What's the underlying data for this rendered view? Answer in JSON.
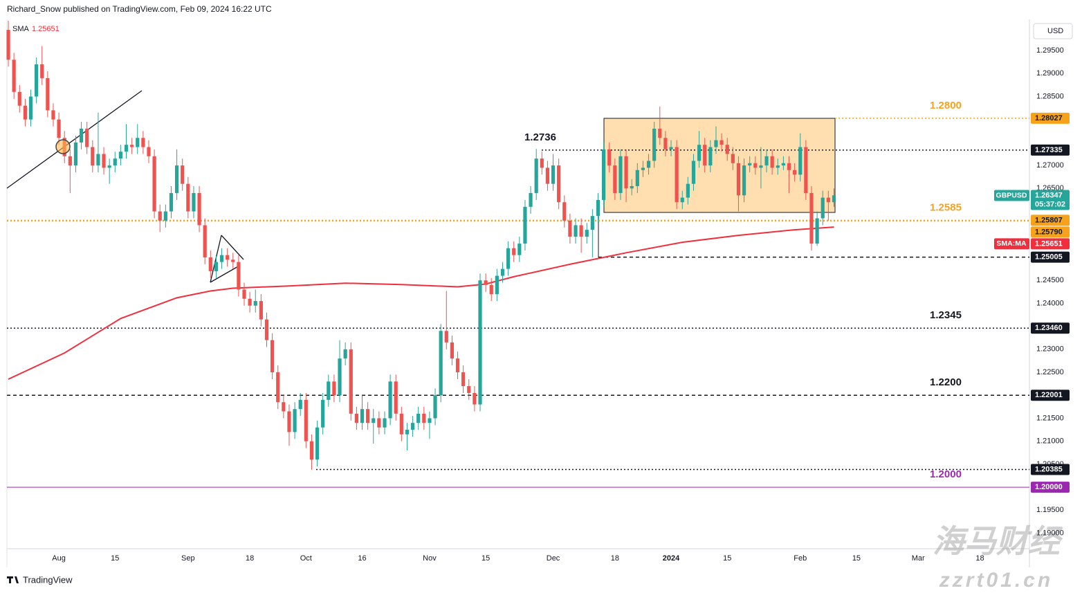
{
  "header": {
    "publisher": "Richard_Snow published on TradingView.com, Feb 09, 2024 16:22 UTC"
  },
  "footer": {
    "brand": "TradingView"
  },
  "watermark": {
    "name": "海马财经",
    "site": "zzrt01.cn"
  },
  "chart_data": {
    "type": "candlestick",
    "currency": "USD",
    "up_color": "#26a69a",
    "down_color": "#ef5350",
    "open": [
      1.2995,
      1.293,
      1.286,
      1.283,
      1.28,
      1.285,
      1.292,
      1.289,
      1.282,
      1.28,
      1.276,
      1.272,
      1.27,
      1.275,
      1.278,
      1.274,
      1.27,
      1.2725,
      1.2695,
      1.27,
      1.2715,
      1.273,
      1.2745,
      1.274,
      1.276,
      1.274,
      1.272,
      1.26,
      1.258,
      1.26,
      1.264,
      1.27,
      1.266,
      1.26,
      1.264,
      1.257,
      1.25,
      1.247,
      1.249,
      1.2505,
      1.2495,
      1.249,
      1.243,
      1.241,
      1.2395,
      1.2405,
      1.2365,
      1.232,
      1.225,
      1.2185,
      1.2165,
      1.212,
      1.217,
      1.219,
      1.21,
      1.206,
      1.213,
      1.219,
      1.223,
      1.22,
      1.228,
      1.23,
      1.216,
      1.214,
      1.217,
      1.214,
      1.215,
      1.213,
      1.215,
      1.223,
      1.216,
      1.2115,
      1.2125,
      1.214,
      1.216,
      1.214,
      1.215,
      1.22,
      1.234,
      1.2315,
      1.228,
      1.225,
      1.222,
      1.2205,
      1.218,
      1.245,
      1.244,
      1.242,
      1.246,
      1.2475,
      1.252,
      1.2505,
      1.253,
      1.261,
      1.264,
      1.2715,
      1.2695,
      1.266,
      1.27,
      1.262,
      1.258,
      1.2545,
      1.257,
      1.2545,
      1.256,
      1.259,
      1.2625,
      1.2735,
      1.27,
      1.264,
      1.272,
      1.265,
      1.2655,
      1.269,
      1.2695,
      1.271,
      1.278,
      1.276,
      1.2735,
      1.274,
      1.262,
      1.263,
      1.266,
      1.271,
      1.2745,
      1.27,
      1.274,
      1.2755,
      1.2745,
      1.2725,
      1.2705,
      1.2635,
      1.27,
      1.2705,
      1.2695,
      1.27,
      1.272,
      1.2695,
      1.27,
      1.2705,
      1.269,
      1.268,
      1.274,
      1.264,
      1.253,
      1.2585,
      1.263,
      1.262
    ],
    "high": [
      1.3015,
      1.2945,
      1.2875,
      1.2845,
      1.2865,
      1.2935,
      1.296,
      1.2905,
      1.2835,
      1.2815,
      1.2775,
      1.2735,
      1.2765,
      1.2795,
      1.2795,
      1.2755,
      1.2815,
      1.274,
      1.2715,
      1.273,
      1.2745,
      1.279,
      1.276,
      1.279,
      1.2775,
      1.2755,
      1.2735,
      1.2615,
      1.2615,
      1.2655,
      1.2735,
      1.2715,
      1.2675,
      1.2655,
      1.2655,
      1.2585,
      1.2515,
      1.2505,
      1.252,
      1.252,
      1.251,
      1.2505,
      1.2445,
      1.2425,
      1.243,
      1.242,
      1.238,
      1.2335,
      1.2265,
      1.22,
      1.218,
      1.2185,
      1.2205,
      1.2205,
      1.2115,
      1.2145,
      1.2205,
      1.2245,
      1.2245,
      1.232,
      1.2315,
      1.2315,
      1.2175,
      1.22,
      1.2185,
      1.217,
      1.2165,
      1.2165,
      1.2245,
      1.2245,
      1.2175,
      1.214,
      1.2155,
      1.2175,
      1.2175,
      1.2165,
      1.2215,
      1.2355,
      1.2427,
      1.233,
      1.2295,
      1.2265,
      1.2235,
      1.222,
      1.2465,
      1.2465,
      1.2455,
      1.2475,
      1.249,
      1.2535,
      1.2535,
      1.2545,
      1.2625,
      1.2655,
      1.2736,
      1.273,
      1.271,
      1.2725,
      1.2715,
      1.2635,
      1.2595,
      1.2585,
      1.2585,
      1.2575,
      1.2605,
      1.264,
      1.275,
      1.275,
      1.2715,
      1.2735,
      1.2735,
      1.267,
      1.2705,
      1.271,
      1.2725,
      1.2795,
      1.2828,
      1.2775,
      1.2755,
      1.2755,
      1.2645,
      1.2675,
      1.2725,
      1.2775,
      1.276,
      1.2755,
      1.2785,
      1.277,
      1.276,
      1.274,
      1.272,
      1.2715,
      1.272,
      1.272,
      1.274,
      1.2735,
      1.2735,
      1.2715,
      1.272,
      1.272,
      1.2705,
      1.277,
      1.2755,
      1.2655,
      1.26,
      1.2645,
      1.2645,
      1.265
    ],
    "low": [
      1.2915,
      1.2845,
      1.2815,
      1.2785,
      1.2785,
      1.2835,
      1.2875,
      1.2805,
      1.2785,
      1.2745,
      1.2705,
      1.264,
      1.2685,
      1.2735,
      1.2725,
      1.2685,
      1.2685,
      1.268,
      1.266,
      1.2685,
      1.27,
      1.2715,
      1.2725,
      1.2725,
      1.2725,
      1.2705,
      1.2585,
      1.2555,
      1.2565,
      1.2585,
      1.2625,
      1.2645,
      1.2585,
      1.2585,
      1.2555,
      1.2485,
      1.2455,
      1.2455,
      1.2475,
      1.248,
      1.2475,
      1.2415,
      1.2395,
      1.238,
      1.238,
      1.235,
      1.2305,
      1.2235,
      1.217,
      1.215,
      1.209,
      1.2105,
      1.2155,
      1.2085,
      1.2038,
      1.2045,
      1.2115,
      1.2175,
      1.2185,
      1.2185,
      1.2265,
      1.2145,
      1.2125,
      1.2125,
      1.2125,
      1.2095,
      1.2115,
      1.2115,
      1.2135,
      1.2145,
      1.21,
      1.208,
      1.211,
      1.2125,
      1.2125,
      1.2105,
      1.2135,
      1.2185,
      1.23,
      1.2265,
      1.2235,
      1.2205,
      1.219,
      1.2165,
      1.2165,
      1.2425,
      1.2405,
      1.2405,
      1.2445,
      1.246,
      1.249,
      1.249,
      1.2515,
      1.2595,
      1.2625,
      1.268,
      1.2645,
      1.2645,
      1.2605,
      1.2565,
      1.253,
      1.253,
      1.251,
      1.253,
      1.25,
      1.2575,
      1.261,
      1.2685,
      1.2625,
      1.2625,
      1.262,
      1.2635,
      1.264,
      1.2675,
      1.268,
      1.2695,
      1.2745,
      1.272,
      1.272,
      1.2605,
      1.2605,
      1.2615,
      1.2645,
      1.2695,
      1.2685,
      1.2685,
      1.2725,
      1.273,
      1.271,
      1.269,
      1.26,
      1.262,
      1.2685,
      1.268,
      1.265,
      1.2685,
      1.268,
      1.268,
      1.269,
      1.264,
      1.2665,
      1.2665,
      1.2625,
      1.2515,
      1.2525,
      1.257,
      1.258,
      1.261
    ],
    "close": [
      1.293,
      1.286,
      1.283,
      1.28,
      1.285,
      1.292,
      1.289,
      1.282,
      1.28,
      1.276,
      1.272,
      1.27,
      1.275,
      1.278,
      1.274,
      1.27,
      1.2725,
      1.2695,
      1.27,
      1.2715,
      1.273,
      1.2745,
      1.274,
      1.276,
      1.274,
      1.272,
      1.26,
      1.258,
      1.26,
      1.264,
      1.27,
      1.266,
      1.26,
      1.264,
      1.257,
      1.25,
      1.247,
      1.249,
      1.2505,
      1.2495,
      1.249,
      1.243,
      1.241,
      1.2395,
      1.2405,
      1.2365,
      1.232,
      1.225,
      1.2185,
      1.2165,
      1.212,
      1.217,
      1.219,
      1.21,
      1.206,
      1.213,
      1.219,
      1.223,
      1.22,
      1.228,
      1.23,
      1.216,
      1.214,
      1.217,
      1.214,
      1.215,
      1.213,
      1.215,
      1.223,
      1.216,
      1.2115,
      1.2125,
      1.214,
      1.216,
      1.214,
      1.215,
      1.22,
      1.234,
      1.2315,
      1.228,
      1.225,
      1.222,
      1.2205,
      1.218,
      1.245,
      1.244,
      1.242,
      1.246,
      1.2475,
      1.252,
      1.2505,
      1.253,
      1.261,
      1.264,
      1.2715,
      1.2695,
      1.266,
      1.27,
      1.262,
      1.258,
      1.2545,
      1.257,
      1.2545,
      1.256,
      1.259,
      1.2625,
      1.2735,
      1.27,
      1.264,
      1.272,
      1.265,
      1.2655,
      1.269,
      1.2695,
      1.271,
      1.278,
      1.276,
      1.2735,
      1.274,
      1.262,
      1.263,
      1.266,
      1.271,
      1.2745,
      1.27,
      1.274,
      1.2755,
      1.2745,
      1.2725,
      1.2705,
      1.2635,
      1.27,
      1.2705,
      1.2695,
      1.27,
      1.272,
      1.2695,
      1.27,
      1.2705,
      1.269,
      1.268,
      1.274,
      1.264,
      1.253,
      1.2585,
      1.263,
      1.262,
      1.2635
    ],
    "sma": {
      "legend_name": "SMA",
      "tag_name": "SMA:MA",
      "last": 1.25651,
      "color": "#ef2f3c",
      "x": [
        0,
        10,
        20,
        30,
        36,
        40,
        50,
        60,
        70,
        80,
        85,
        90,
        100,
        110,
        120,
        130,
        140,
        147
      ],
      "values": [
        1.2235,
        1.2292,
        1.2367,
        1.2412,
        1.2427,
        1.2433,
        1.2438,
        1.2444,
        1.2441,
        1.2436,
        1.2442,
        1.2458,
        1.2485,
        1.251,
        1.2533,
        1.2548,
        1.256,
        1.2566
      ]
    },
    "last_price": {
      "symbol": "GBPUSD",
      "value": 1.26347,
      "countdown": "05:37:02",
      "color": "#26a69a"
    },
    "levels": [
      {
        "price": 1.28027,
        "tag": "1.28027",
        "label": "1.2800",
        "color": "#f7a21b",
        "style": "dotted"
      },
      {
        "price": 1.27335,
        "tag": "1.27335",
        "label": "1.2736",
        "color": "#131722",
        "style": "dotted"
      },
      {
        "price": 1.25807,
        "tag": "1.25807",
        "label": "1.2585",
        "color": "#f7a21b",
        "style": "dotted"
      },
      {
        "price": 1.2579,
        "tag": "1.25790",
        "color": "#f7a21b",
        "style": "dotted"
      },
      {
        "price": 1.25005,
        "tag": "1.25005",
        "color": "#131722",
        "style": "dashed"
      },
      {
        "price": 1.2346,
        "tag": "1.23460",
        "label": "1.2345",
        "color": "#131722",
        "style": "dotted"
      },
      {
        "price": 1.22001,
        "tag": "1.22001",
        "label": "1.2200",
        "color": "#131722",
        "style": "dashed"
      },
      {
        "price": 1.20385,
        "tag": "1.20385",
        "color": "#131722",
        "style": "dotted"
      },
      {
        "price": 1.2,
        "tag": "1.20000",
        "label": "1.2000",
        "color": "#9c27b0",
        "style": "solid"
      }
    ],
    "xlim": [
      -0.25,
      181.8
    ],
    "ylim": [
      1.18662,
      1.30148
    ],
    "yticks": [
      {
        "value": 1.295,
        "label": "1.29500"
      },
      {
        "value": 1.29,
        "label": "1.29000"
      },
      {
        "value": 1.285,
        "label": "1.28500"
      },
      {
        "value": 1.27,
        "label": "1.27000"
      },
      {
        "value": 1.265,
        "label": "1.26500"
      },
      {
        "value": 1.245,
        "label": "1.24500"
      },
      {
        "value": 1.24,
        "label": "1.24000"
      },
      {
        "value": 1.23,
        "label": "1.23000"
      },
      {
        "value": 1.225,
        "label": "1.22500"
      },
      {
        "value": 1.215,
        "label": "1.21500"
      },
      {
        "value": 1.21,
        "label": "1.21000"
      },
      {
        "value": 1.205,
        "label": "1.20500"
      },
      {
        "value": 1.195,
        "label": "1.19500"
      },
      {
        "value": 1.19,
        "label": "1.19000"
      }
    ],
    "xticks": [
      {
        "value": 9,
        "label": "Aug"
      },
      {
        "value": 19,
        "label": "15"
      },
      {
        "value": 32,
        "label": "Sep"
      },
      {
        "value": 43,
        "label": "18"
      },
      {
        "value": 53,
        "label": "Oct"
      },
      {
        "value": 63,
        "label": "16"
      },
      {
        "value": 75,
        "label": "Nov"
      },
      {
        "value": 85,
        "label": "15"
      },
      {
        "value": 97,
        "label": "Dec"
      },
      {
        "value": 108,
        "label": "18"
      },
      {
        "value": 118,
        "label": "2024"
      },
      {
        "value": 128,
        "label": "15"
      },
      {
        "value": 141,
        "label": "Feb"
      },
      {
        "value": 151,
        "label": "15"
      },
      {
        "value": 162,
        "label": "Mar"
      },
      {
        "value": 173,
        "label": "18"
      }
    ],
    "grid": false
  }
}
